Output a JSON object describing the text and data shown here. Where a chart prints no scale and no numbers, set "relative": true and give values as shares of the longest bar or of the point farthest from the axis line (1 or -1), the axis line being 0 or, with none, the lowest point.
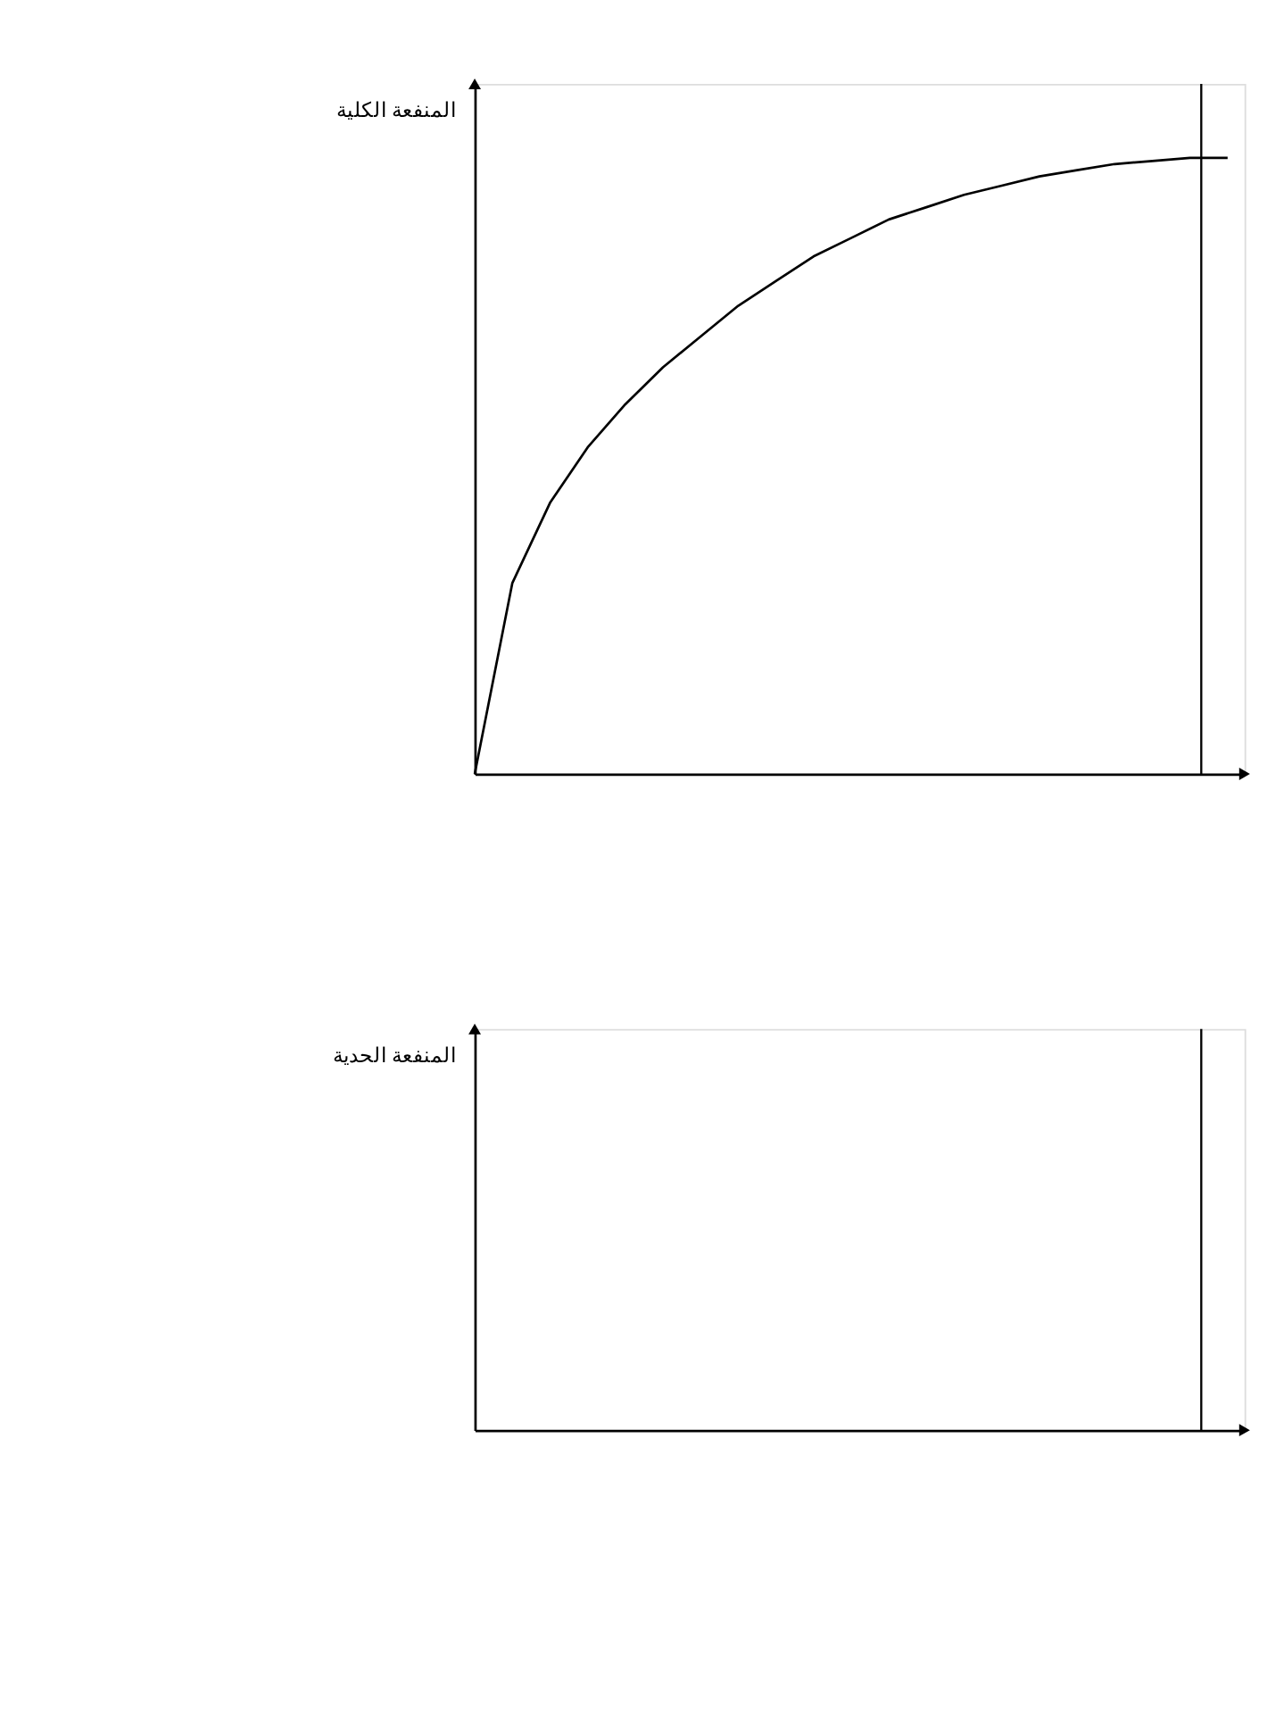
{
  "chart_data": [
    {
      "type": "line",
      "relative": true,
      "ylabel": "المنفعة الكلية",
      "marker": "none",
      "line_style": "solid",
      "categories": [
        null,
        null,
        null,
        null,
        null,
        null,
        null,
        null,
        null,
        null,
        null,
        null,
        null,
        null,
        null,
        null,
        null,
        null,
        null,
        null,
        null
      ],
      "series": [
        {
          "color": "#000000",
          "values": [
            0,
            0.31,
            0.44,
            0.53,
            0.6,
            0.66,
            0.71,
            0.76,
            0.8,
            0.84,
            0.87,
            0.9,
            0.92,
            0.94,
            0.955,
            0.97,
            0.98,
            0.99,
            0.995,
            1,
            1
          ]
        }
      ]
    },
    {
      "type": "other",
      "ylabel": "المنفعة الحدية"
    }
  ]
}
